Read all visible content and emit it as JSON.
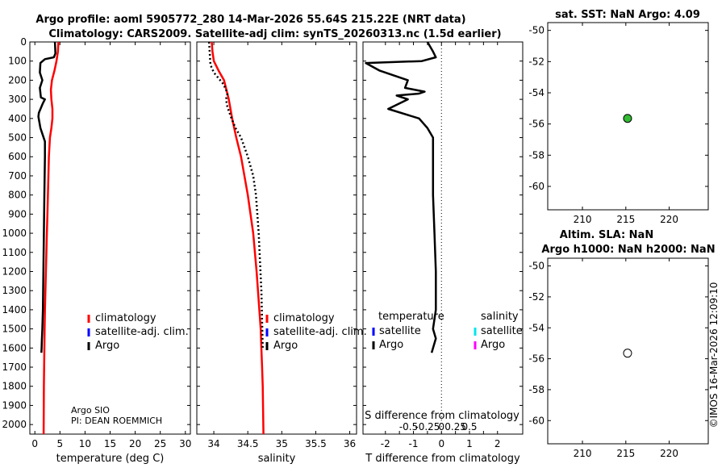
{
  "title_line1": "Argo profile: aoml 5905772_280 14-Mar-2026 55.64S 215.22E (NRT data)",
  "title_line2": "Climatology: CARS2009. Satellite-adj clim: synTS_20260313.nc (1.5d earlier)",
  "copyright": "©IMOS 16-Mar-2026 12:09:10",
  "colors": {
    "climatology": "#ff0000",
    "satellite": "#0000ff",
    "argo": "#000000",
    "sat_salinity": "#00e5ee",
    "argo_salinity": "#ff00ff",
    "dot_fill": "#33bb33"
  },
  "chart_data": [
    {
      "id": "temperature",
      "type": "line",
      "xlabel": "temperature (deg C)",
      "ylabel": "",
      "xlim": [
        -1,
        31
      ],
      "ylim": [
        2050,
        0
      ],
      "xticks": [
        0,
        5,
        10,
        15,
        20,
        25,
        30
      ],
      "yticks": [
        0,
        100,
        200,
        300,
        400,
        500,
        600,
        700,
        800,
        900,
        1000,
        1100,
        1200,
        1300,
        1400,
        1500,
        1600,
        1700,
        1800,
        1900,
        2000
      ],
      "legend": [
        "climatology",
        "satellite-adj. clim.",
        "Argo"
      ],
      "annotation": [
        "Argo SIO",
        "PI: DEAN ROEMMICH"
      ],
      "series": [
        {
          "name": "climatology",
          "style": "solid-red",
          "x": [
            4.7,
            4.6,
            4.3,
            3.9,
            3.4,
            3.2,
            3.3,
            3.5,
            3.5,
            3.3,
            3.0,
            2.8,
            2.7,
            2.6,
            2.5,
            2.4,
            2.3,
            2.2,
            2.1,
            2.0,
            1.95,
            1.9,
            1.8,
            1.75
          ],
          "y": [
            0,
            50,
            100,
            150,
            200,
            250,
            300,
            350,
            400,
            450,
            500,
            600,
            700,
            800,
            900,
            1000,
            1100,
            1200,
            1300,
            1400,
            1500,
            1600,
            1800,
            2050
          ]
        },
        {
          "name": "Argo",
          "style": "solid-black",
          "x": [
            4.0,
            4.1,
            3.8,
            2.0,
            1.1,
            1.0,
            1.5,
            1.0,
            1.2,
            2.0,
            1.6,
            0.8,
            0.7,
            1.1,
            2.0,
            2.0,
            1.9,
            1.8,
            1.7,
            1.6,
            1.5,
            1.4,
            1.35,
            1.3
          ],
          "y": [
            0,
            60,
            80,
            90,
            110,
            160,
            200,
            240,
            290,
            300,
            320,
            370,
            390,
            450,
            520,
            600,
            800,
            1000,
            1200,
            1400,
            1500,
            1560,
            1600,
            1625
          ]
        }
      ]
    },
    {
      "id": "salinity",
      "type": "line",
      "xlabel": "salinity",
      "xlim": [
        33.75,
        36.1
      ],
      "ylim": [
        2050,
        0
      ],
      "xticks": [
        34,
        34.5,
        35,
        35.5,
        36
      ],
      "legend": [
        "climatology",
        "satellite-adj. clim.",
        "Argo"
      ],
      "series": [
        {
          "name": "climatology",
          "style": "solid-red",
          "x": [
            33.97,
            33.98,
            34.0,
            34.07,
            34.15,
            34.22,
            34.27,
            34.33,
            34.4,
            34.5,
            34.58,
            34.63,
            34.67,
            34.69,
            34.7,
            34.71,
            34.72,
            34.73
          ],
          "y": [
            0,
            50,
            100,
            150,
            200,
            300,
            400,
            500,
            600,
            800,
            1000,
            1200,
            1400,
            1500,
            1600,
            1700,
            1800,
            2050
          ]
        },
        {
          "name": "Argo",
          "style": "dotted-black",
          "x": [
            33.93,
            33.95,
            34.0,
            34.07,
            34.14,
            34.18,
            34.2,
            34.18,
            34.2,
            34.26,
            34.32,
            34.4,
            34.5,
            34.58,
            34.62,
            34.64,
            34.66,
            34.7,
            34.72
          ],
          "y": [
            0,
            120,
            160,
            190,
            220,
            250,
            270,
            300,
            340,
            400,
            450,
            500,
            600,
            700,
            800,
            900,
            1000,
            1300,
            1600
          ]
        }
      ]
    },
    {
      "id": "difference",
      "type": "line",
      "xlabel": "T difference from climatology",
      "top_label": "S difference from climatology",
      "xlim": [
        -2.8,
        2.9
      ],
      "ylim": [
        2050,
        0
      ],
      "xticks": [
        -2,
        -1.5,
        -1,
        -0.5,
        0,
        0.5,
        1,
        1.5,
        2
      ],
      "xticklabels": [
        "-2",
        "",
        "-1",
        "",
        "0",
        "",
        "1",
        "",
        "2"
      ],
      "top_xticklabels": [
        "-0.5",
        "-0.25",
        "0",
        "0.25",
        "0.5"
      ],
      "legend_headers": [
        "temperature",
        "salinity"
      ],
      "legend_temperature": [
        "satellite",
        "Argo"
      ],
      "legend_salinity": [
        "satellite",
        "Argo"
      ],
      "series": [
        {
          "name": "T difference Argo",
          "style": "solid-black",
          "x": [
            -0.5,
            -0.3,
            -0.2,
            -0.7,
            -2.7,
            -2.2,
            -1.2,
            -1.3,
            -0.6,
            -0.8,
            -1.6,
            -1.2,
            -1.9,
            -0.8,
            -0.5,
            -0.3,
            -0.3,
            -0.3,
            -0.3,
            -0.25,
            -0.2,
            -0.2,
            -0.3,
            -0.2,
            -0.35
          ],
          "y": [
            0,
            50,
            80,
            100,
            110,
            150,
            200,
            240,
            260,
            270,
            280,
            300,
            350,
            400,
            450,
            500,
            600,
            700,
            800,
            1000,
            1200,
            1400,
            1500,
            1550,
            1625
          ]
        }
      ]
    },
    {
      "id": "sst_map",
      "type": "scatter",
      "title": "sat. SST: NaN Argo: 4.09",
      "xlim": [
        206,
        224.5
      ],
      "ylim": [
        -61.5,
        -49.5
      ],
      "xticks": [
        210,
        215,
        220
      ],
      "yticks": [
        -50,
        -52,
        -54,
        -56,
        -58,
        -60
      ],
      "points": [
        {
          "x": 215.2,
          "y": -55.64,
          "fill": "green"
        }
      ]
    },
    {
      "id": "sla_map",
      "type": "scatter",
      "title_line1": "Altim. SLA: NaN",
      "title_line2": "Argo h1000: NaN h2000: NaN",
      "xlim": [
        206,
        224.5
      ],
      "ylim": [
        -61.5,
        -49.5
      ],
      "xticks": [
        210,
        215,
        220
      ],
      "yticks": [
        -50,
        -52,
        -54,
        -56,
        -58,
        -60
      ],
      "points": [
        {
          "x": 215.2,
          "y": -55.64,
          "fill": "white"
        }
      ]
    }
  ]
}
